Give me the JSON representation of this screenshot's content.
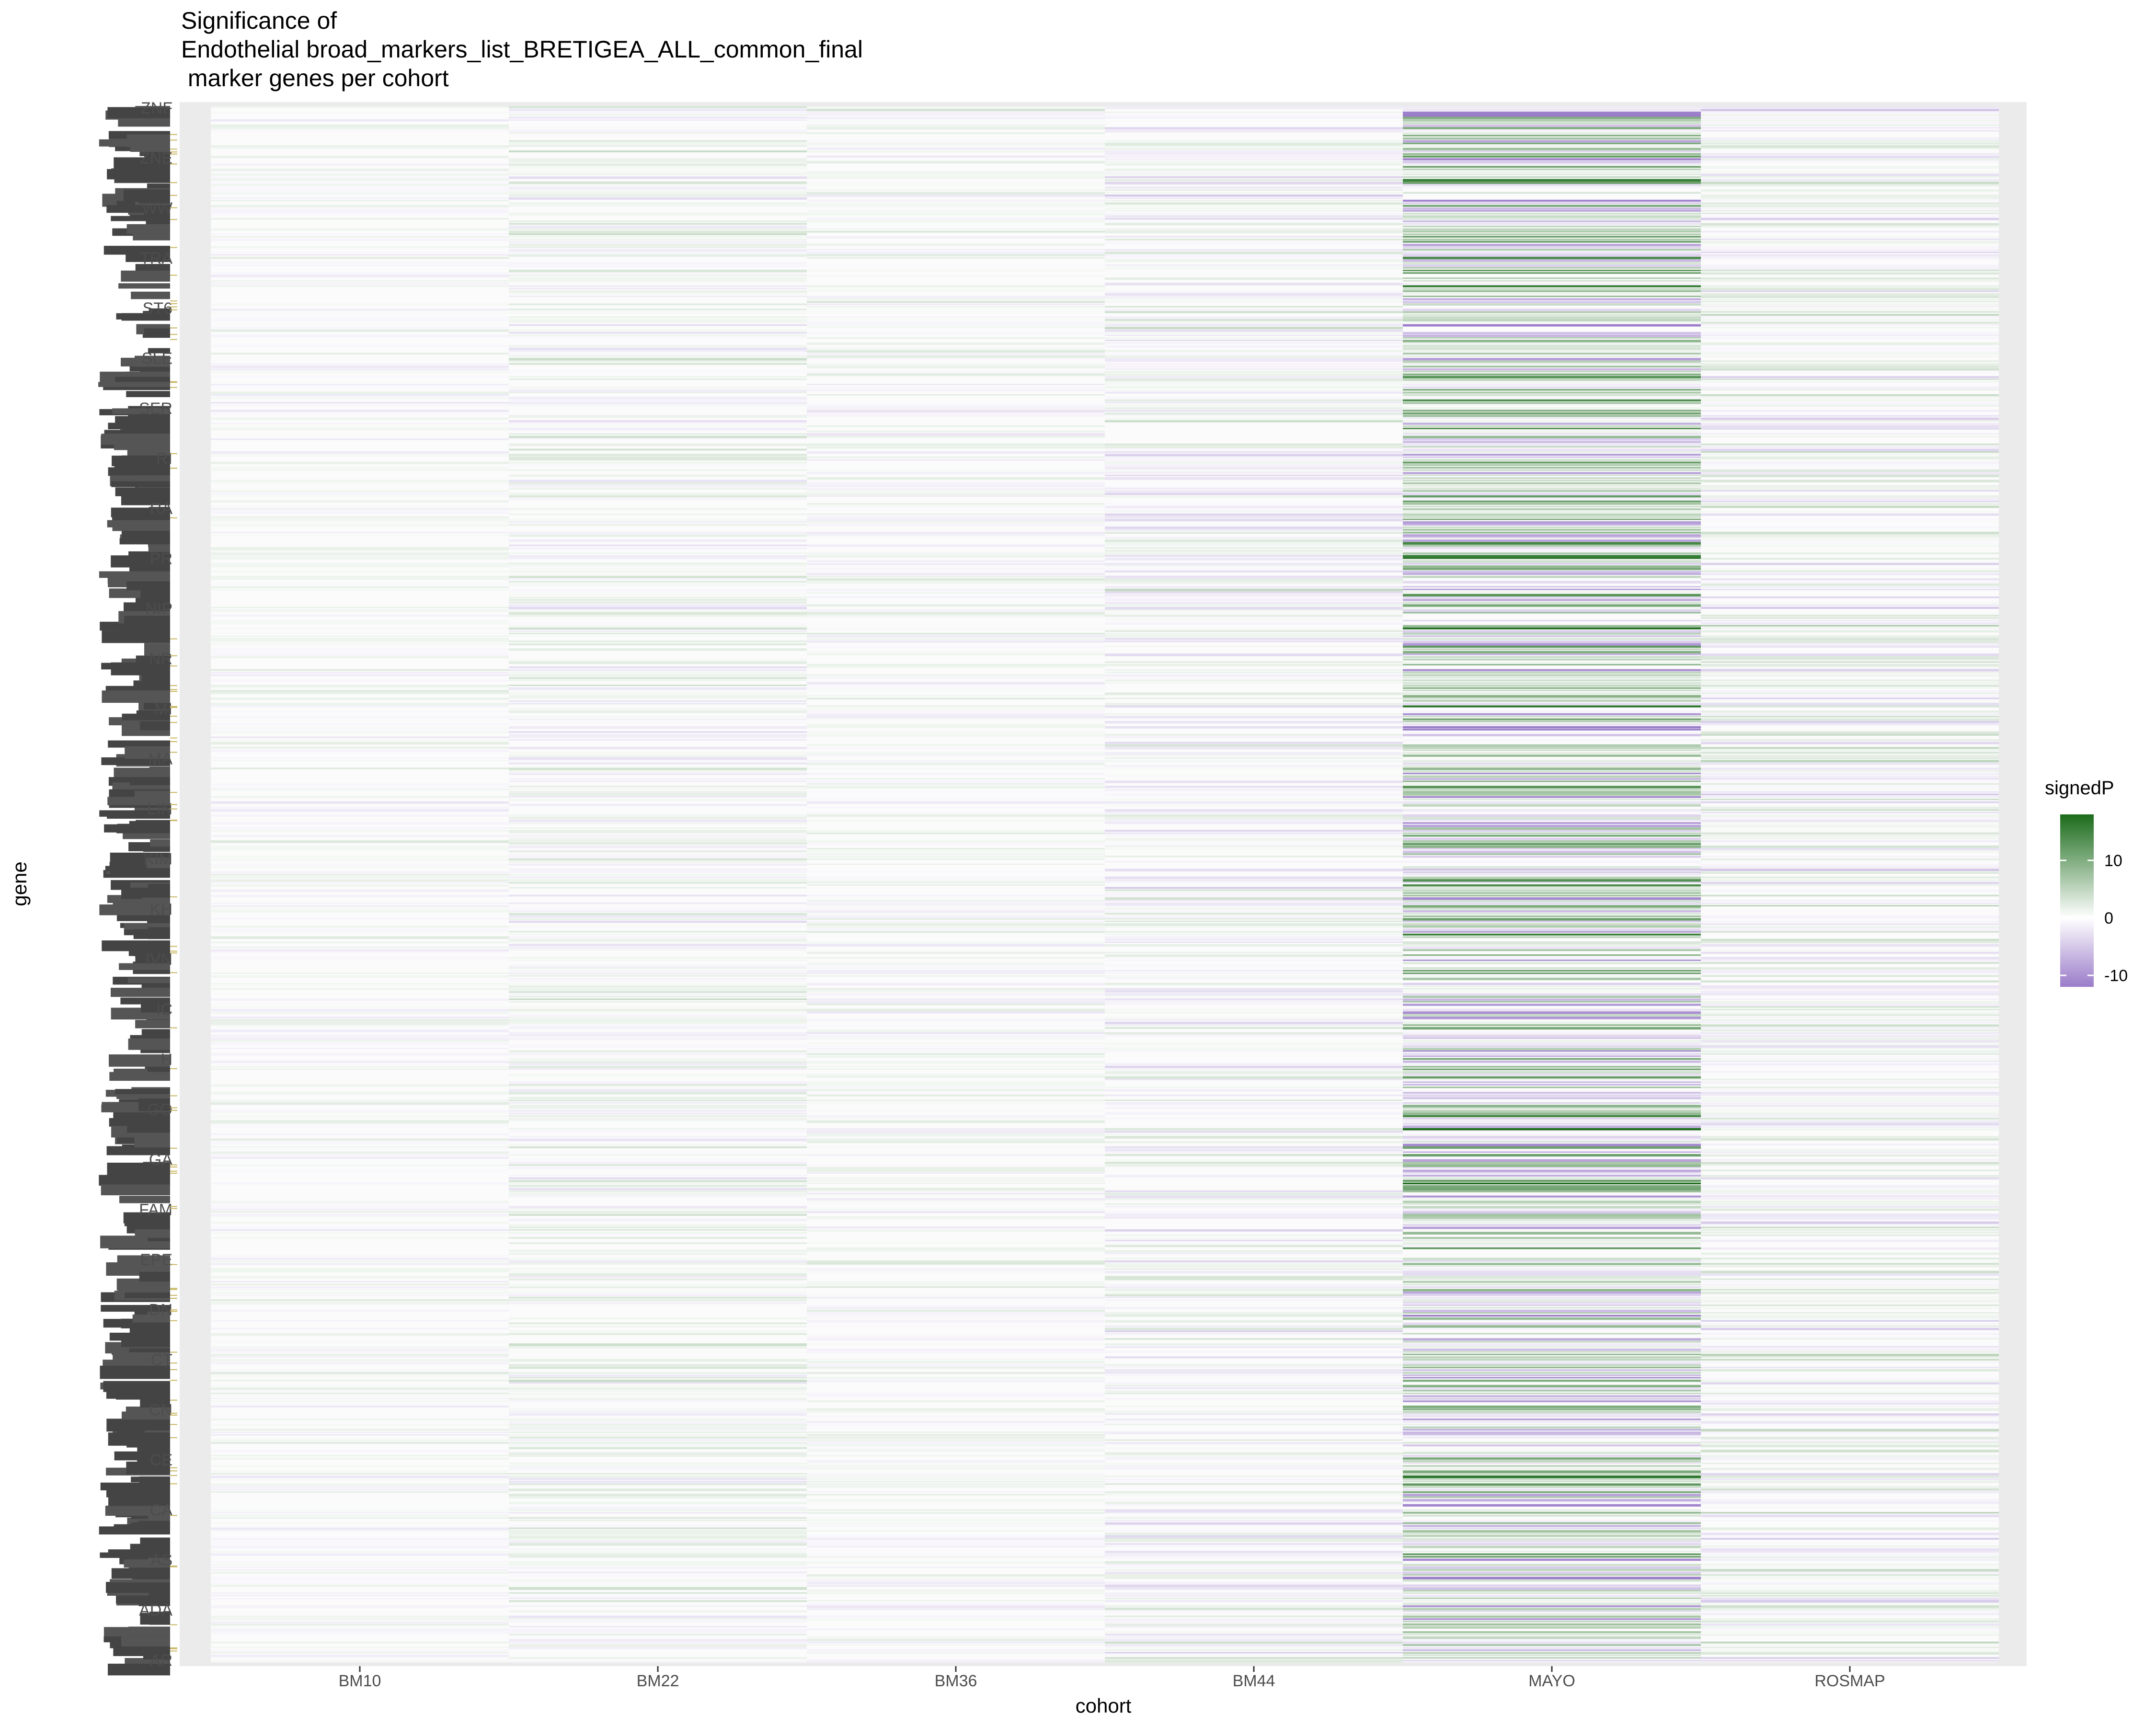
{
  "chart_data": {
    "type": "heatmap",
    "title_lines": [
      "Significance of",
      "Endothelial broad_markers_list_BRETIGEA_ALL_common_final",
      " marker genes per cohort"
    ],
    "xlabel": "cohort",
    "ylabel": "gene",
    "categories": [
      "BM10",
      "BM22",
      "BM36",
      "BM44",
      "MAYO",
      "ROSMAP"
    ],
    "visible_gene_labels": [
      "ZNF",
      "ZNE",
      "WW",
      "TRA",
      "ST6",
      "SLE",
      "SER",
      "RI",
      "RA",
      "PR",
      "NIP",
      "NR",
      "MI",
      "MA",
      "LIN",
      "KIM",
      "KH",
      "IVN",
      "IC",
      "H",
      "GO",
      "GA",
      "FAM",
      "EPE",
      "DN",
      "CT",
      "CN",
      "CE",
      "CA",
      "AS",
      "ADA",
      "AR"
    ],
    "legend": {
      "title": "signedP",
      "ticks": [
        -10,
        0,
        10
      ],
      "range": [
        -12,
        18
      ],
      "low_color": "#9a7cc9",
      "mid_color": "#ffffff",
      "high_color": "#1b6b1b"
    }
  }
}
